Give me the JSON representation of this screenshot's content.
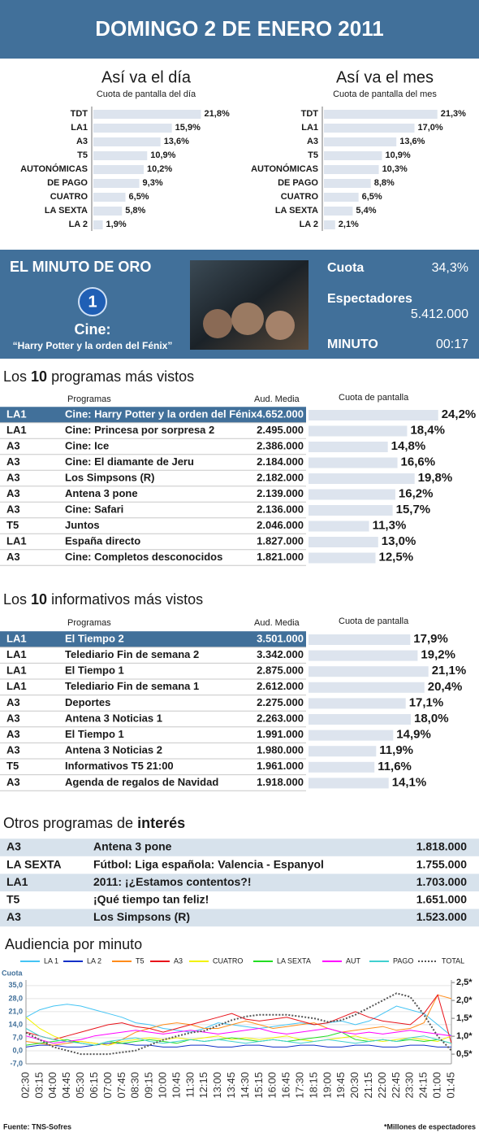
{
  "header": {
    "title": "DOMINGO 2 DE ENERO 2011"
  },
  "chart_data": [
    {
      "type": "bar",
      "title": "Así va el día",
      "subtitle": "Cuota de pantalla del día",
      "categories": [
        "TDT",
        "LA1",
        "A3",
        "T5",
        "AUTONÓMICAS",
        "DE PAGO",
        "CUATRO",
        "LA SEXTA",
        "LA 2"
      ],
      "values": [
        21.8,
        15.9,
        13.6,
        10.9,
        10.2,
        9.3,
        6.5,
        5.8,
        1.9
      ],
      "value_labels": [
        "21,8%",
        "15,9%",
        "13,6%",
        "10,9%",
        "10,2%",
        "9,3%",
        "6,5%",
        "5,8%",
        "1,9%"
      ],
      "color": "#dde4ee",
      "xlim": [
        0,
        25
      ]
    },
    {
      "type": "bar",
      "title": "Así va el mes",
      "subtitle": "Cuota de pantalla del mes",
      "categories": [
        "TDT",
        "LA1",
        "A3",
        "T5",
        "AUTONÓMICAS",
        "DE PAGO",
        "CUATRO",
        "LA SEXTA",
        "LA 2"
      ],
      "values": [
        21.3,
        17.0,
        13.6,
        10.9,
        10.3,
        8.8,
        6.5,
        5.4,
        2.1
      ],
      "value_labels": [
        "21,3%",
        "17,0%",
        "13,6%",
        "10,9%",
        "10,3%",
        "8,8%",
        "6,5%",
        "5,4%",
        "2,1%"
      ],
      "color": "#dde4ee",
      "xlim": [
        0,
        25
      ]
    },
    {
      "type": "line",
      "title": "Audiencia por minuto",
      "y_label": "Cuota",
      "x": [
        "02:30",
        "03:15",
        "04:00",
        "04:45",
        "05:30",
        "06:15",
        "07:00",
        "07:45",
        "08:30",
        "09:15",
        "10:00",
        "10:45",
        "11:30",
        "12:15",
        "13:00",
        "13:45",
        "14:30",
        "15:15",
        "16:00",
        "16:45",
        "17:30",
        "18:15",
        "19:00",
        "19:45",
        "20:30",
        "21:15",
        "22:00",
        "22:45",
        "23:30",
        "24:15",
        "01:00",
        "01:45"
      ],
      "ylim": [
        -7,
        38
      ],
      "yticks": [
        {
          "value": 35,
          "label": "35,0"
        },
        {
          "value": 28,
          "label": "28,0"
        },
        {
          "value": 21,
          "label": "21,0"
        },
        {
          "value": 14,
          "label": "14,0"
        },
        {
          "value": 7,
          "label": "7,0"
        },
        {
          "value": 0,
          "label": "0,0"
        },
        {
          "value": -7,
          "label": "-7,0"
        }
      ],
      "y2lim": [
        0.23,
        2.57
      ],
      "y2ticks": [
        {
          "value": 2.5,
          "label": "2,5*"
        },
        {
          "value": 2.0,
          "label": "2,0*"
        },
        {
          "value": 1.5,
          "label": "1,5*"
        },
        {
          "value": 1.0,
          "label": "1,0*"
        },
        {
          "value": 0.5,
          "label": "0,5*"
        }
      ],
      "grid": true,
      "series": [
        {
          "name": "LA 1",
          "color": "#44c4f4",
          "values": [
            18,
            22,
            24,
            25,
            24,
            22,
            20,
            18,
            15,
            14,
            12,
            11,
            10,
            12,
            15,
            14,
            13,
            12,
            13,
            14,
            15,
            14,
            15,
            16,
            14,
            16,
            20,
            24,
            22,
            20,
            14,
            8
          ]
        },
        {
          "name": "LA 2",
          "color": "#1030c8",
          "values": [
            2,
            3,
            3,
            2,
            2,
            3,
            4,
            4,
            3,
            3,
            2,
            2,
            3,
            3,
            2,
            2,
            3,
            3,
            2,
            2,
            3,
            3,
            2,
            2,
            3,
            3,
            2,
            2,
            3,
            3,
            2,
            2
          ]
        },
        {
          "name": "T5",
          "color": "#ff8c1a",
          "values": [
            5,
            4,
            3,
            4,
            5,
            4,
            3,
            6,
            10,
            12,
            14,
            15,
            14,
            12,
            12,
            14,
            16,
            14,
            12,
            13,
            14,
            15,
            12,
            10,
            11,
            12,
            13,
            11,
            12,
            15,
            30,
            28
          ]
        },
        {
          "name": "A3",
          "color": "#e8121a",
          "values": [
            10,
            8,
            6,
            8,
            10,
            12,
            14,
            15,
            13,
            12,
            10,
            12,
            14,
            16,
            18,
            20,
            17,
            16,
            17,
            18,
            16,
            14,
            15,
            18,
            21,
            18,
            16,
            15,
            14,
            20,
            30,
            4
          ]
        },
        {
          "name": "CUATRO",
          "color": "#f2f200",
          "values": [
            18,
            12,
            8,
            5,
            5,
            4,
            3,
            5,
            6,
            7,
            6,
            7,
            6,
            7,
            8,
            6,
            7,
            6,
            7,
            8,
            6,
            5,
            6,
            7,
            8,
            6,
            5,
            6,
            7,
            6,
            5,
            8
          ]
        },
        {
          "name": "LA SEXTA",
          "color": "#22dd22",
          "values": [
            3,
            4,
            5,
            6,
            4,
            3,
            5,
            4,
            5,
            6,
            5,
            4,
            6,
            5,
            6,
            7,
            6,
            5,
            6,
            5,
            6,
            7,
            8,
            10,
            6,
            5,
            6,
            5,
            6,
            5,
            6,
            4
          ]
        },
        {
          "name": "AUT",
          "color": "#ff00ff",
          "values": [
            8,
            6,
            4,
            5,
            6,
            8,
            9,
            10,
            11,
            10,
            9,
            10,
            11,
            10,
            9,
            10,
            11,
            12,
            10,
            9,
            10,
            11,
            12,
            10,
            9,
            10,
            9,
            10,
            11,
            10,
            9,
            8
          ]
        },
        {
          "name": "PAGO",
          "color": "#40d0d0",
          "values": [
            12,
            8,
            6,
            5,
            4,
            3,
            5,
            6,
            7,
            5,
            4,
            5,
            6,
            5,
            6,
            5,
            4,
            5,
            6,
            5,
            4,
            5,
            6,
            5,
            4,
            5,
            6,
            5,
            7,
            8,
            6,
            4
          ]
        },
        {
          "name": "TOTAL",
          "color": "#555555",
          "axis": "y2",
          "style": "dotted",
          "values": [
            1.1,
            0.9,
            0.7,
            0.6,
            0.5,
            0.5,
            0.5,
            0.55,
            0.6,
            0.75,
            0.9,
            1.0,
            1.1,
            1.15,
            1.3,
            1.45,
            1.55,
            1.6,
            1.6,
            1.6,
            1.55,
            1.5,
            1.4,
            1.45,
            1.6,
            1.8,
            2.0,
            2.2,
            2.1,
            1.6,
            1.0,
            0.6
          ]
        }
      ]
    }
  ],
  "golden_minute": {
    "title": "EL MINUTO DE ORO",
    "channel_logo": "1",
    "genre": "Cine:",
    "program": "“Harry Potter y la orden del Fénix”",
    "share_label": "Cuota",
    "share": "34,3%",
    "viewers_label": "Espectadores",
    "viewers": "5.412.000",
    "minute_label": "MINUTO",
    "minute": "00:17"
  },
  "top_programs": {
    "title_parts": [
      "Los ",
      "10",
      " programas más vistos"
    ],
    "columns": [
      "Programas",
      "Aud. Media",
      "Cuota de pantalla"
    ],
    "highlight_row": 0,
    "xlim": [
      0,
      25
    ],
    "rows": [
      {
        "channel": "LA1",
        "program": "Cine: Harry Potter y la orden del Fénix",
        "audience": "4.652.000",
        "share": 24.2,
        "share_label": "24,2%"
      },
      {
        "channel": "LA1",
        "program": "Cine: Princesa por sorpresa 2",
        "audience": "2.495.000",
        "share": 18.4,
        "share_label": "18,4%"
      },
      {
        "channel": "A3",
        "program": "Cine: Ice",
        "audience": "2.386.000",
        "share": 14.8,
        "share_label": "14,8%"
      },
      {
        "channel": "A3",
        "program": "Cine: El diamante de Jeru",
        "audience": "2.184.000",
        "share": 16.6,
        "share_label": "16,6%"
      },
      {
        "channel": "A3",
        "program": "Los Simpsons (R)",
        "audience": "2.182.000",
        "share": 19.8,
        "share_label": "19,8%"
      },
      {
        "channel": "A3",
        "program": "Antena 3 pone",
        "audience": "2.139.000",
        "share": 16.2,
        "share_label": "16,2%"
      },
      {
        "channel": "A3",
        "program": "Cine: Safari",
        "audience": "2.136.000",
        "share": 15.7,
        "share_label": "15,7%"
      },
      {
        "channel": "T5",
        "program": "Juntos",
        "audience": "2.046.000",
        "share": 11.3,
        "share_label": "11,3%"
      },
      {
        "channel": "LA1",
        "program": "España directo",
        "audience": "1.827.000",
        "share": 13.0,
        "share_label": "13,0%"
      },
      {
        "channel": "A3",
        "program": "Cine: Completos desconocidos",
        "audience": "1.821.000",
        "share": 12.5,
        "share_label": "12,5%"
      }
    ]
  },
  "top_news": {
    "title_parts": [
      "Los ",
      "10",
      " informativos más vistos"
    ],
    "columns": [
      "Programas",
      "Aud. Media",
      "Cuota de pantalla"
    ],
    "highlight_row": 0,
    "xlim": [
      0,
      25
    ],
    "rows": [
      {
        "channel": "LA1",
        "program": "El Tiempo 2",
        "audience": "3.501.000",
        "share": 17.9,
        "share_label": "17,9%"
      },
      {
        "channel": "LA1",
        "program": "Telediario Fin de semana 2",
        "audience": "3.342.000",
        "share": 19.2,
        "share_label": "19,2%"
      },
      {
        "channel": "LA1",
        "program": "El Tiempo 1",
        "audience": "2.875.000",
        "share": 21.1,
        "share_label": "21,1%"
      },
      {
        "channel": "LA1",
        "program": "Telediario Fin de semana 1",
        "audience": "2.612.000",
        "share": 20.4,
        "share_label": "20,4%"
      },
      {
        "channel": "A3",
        "program": "Deportes",
        "audience": "2.275.000",
        "share": 17.1,
        "share_label": "17,1%"
      },
      {
        "channel": "A3",
        "program": "Antena 3 Noticias 1",
        "audience": "2.263.000",
        "share": 18.0,
        "share_label": "18,0%"
      },
      {
        "channel": "A3",
        "program": "El Tiempo 1",
        "audience": "1.991.000",
        "share": 14.9,
        "share_label": "14,9%"
      },
      {
        "channel": "A3",
        "program": "Antena 3 Noticias 2",
        "audience": "1.980.000",
        "share": 11.9,
        "share_label": "11,9%"
      },
      {
        "channel": "T5",
        "program": "Informativos T5 21:00",
        "audience": "1.961.000",
        "share": 11.6,
        "share_label": "11,6%"
      },
      {
        "channel": "A3",
        "program": "Agenda de regalos de Navidad",
        "audience": "1.918.000",
        "share": 14.1,
        "share_label": "14,1%"
      }
    ]
  },
  "other_programs": {
    "title_parts": [
      "Otros programas de ",
      "interés"
    ],
    "rows": [
      {
        "channel": "A3",
        "program": "Antena 3 pone",
        "audience": "1.818.000"
      },
      {
        "channel": "LA SEXTA",
        "program": "Fútbol: Liga española: Valencia - Espanyol",
        "audience": "1.755.000"
      },
      {
        "channel": "LA1",
        "program": "2011: ¡¿Estamos contentos?!",
        "audience": "1.703.000"
      },
      {
        "channel": "T5",
        "program": "¡Qué tiempo tan feliz!",
        "audience": "1.651.000"
      },
      {
        "channel": "A3",
        "program": "Los Simpsons (R)",
        "audience": "1.523.000"
      }
    ]
  },
  "footer": {
    "source": "Fuente: TNS-Sofres",
    "note": "*Millones de espectadores"
  }
}
